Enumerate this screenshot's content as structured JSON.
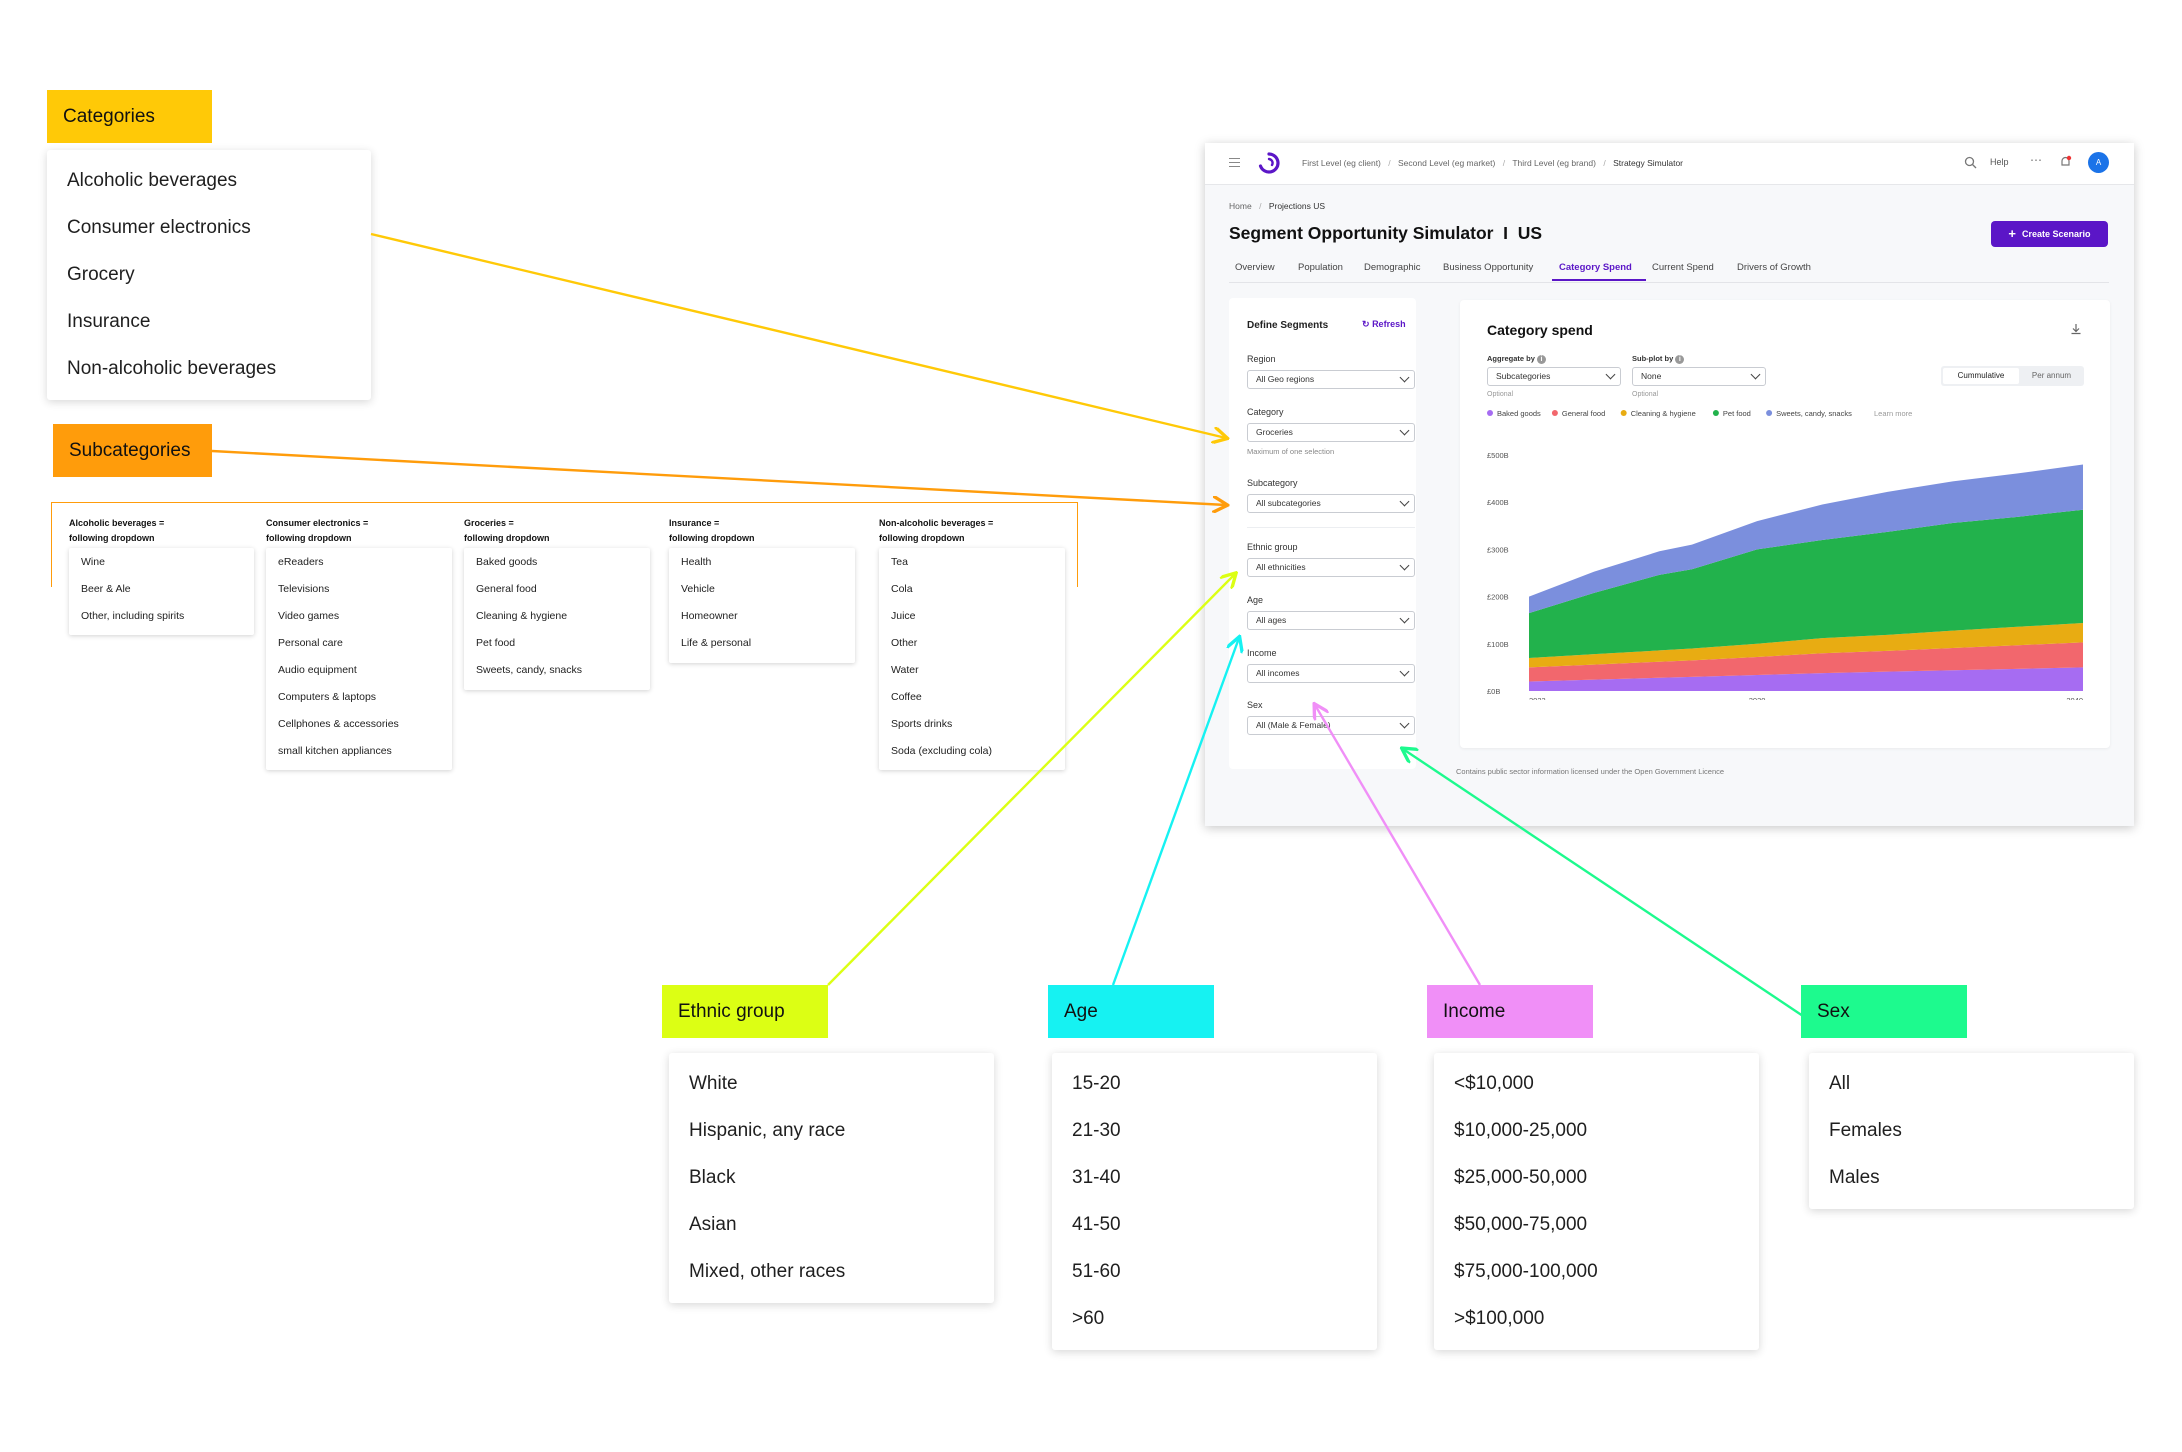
{
  "categories": {
    "tag": "Categories",
    "items": [
      "Alcoholic beverages",
      "Consumer electronics",
      "Grocery",
      "Insurance",
      "Non-alcoholic beverages"
    ]
  },
  "subcategories": {
    "tag": "Subcategories",
    "columns": [
      {
        "head1": "Alcoholic beverages =",
        "head2": "following dropdown",
        "items": [
          "Wine",
          "Beer & Ale",
          "Other, including spirits"
        ]
      },
      {
        "head1": "Consumer electronics =",
        "head2": "following dropdown",
        "items": [
          "eReaders",
          "Televisions",
          "Video games",
          "Personal care",
          "Audio equipment",
          "Computers & laptops",
          "Cellphones & accessories",
          "small kitchen appliances"
        ]
      },
      {
        "head1": "Groceries =",
        "head2": "following dropdown",
        "items": [
          "Baked goods",
          "General food",
          "Cleaning & hygiene",
          "Pet food",
          "Sweets, candy, snacks"
        ]
      },
      {
        "head1": "Insurance =",
        "head2": "following dropdown",
        "items": [
          "Health",
          "Vehicle",
          "Homeowner",
          "Life & personal"
        ]
      },
      {
        "head1": "Non-alcoholic beverages =",
        "head2": "following dropdown",
        "items": [
          "Tea",
          "Cola",
          "Juice",
          "Other",
          "Water",
          "Coffee",
          "Sports drinks",
          "Soda (excluding cola)"
        ]
      }
    ]
  },
  "ethnic": {
    "tag": "Ethnic group",
    "items": [
      "White",
      "Hispanic, any race",
      "Black",
      "Asian",
      "Mixed, other races"
    ]
  },
  "age": {
    "tag": "Age",
    "items": [
      "15-20",
      "21-30",
      "31-40",
      "41-50",
      "51-60",
      ">60"
    ]
  },
  "income": {
    "tag": "Income",
    "items": [
      "<$10,000",
      "$10,000-25,000",
      "$25,000-50,000",
      "$50,000-75,000",
      "$75,000-100,000",
      ">$100,000"
    ]
  },
  "sex": {
    "tag": "Sex",
    "items": [
      "All",
      "Females",
      "Males"
    ]
  },
  "colors": {
    "categories": "#ffc907",
    "subcategories": "#ff9c0b",
    "ethnic": "#dcff14",
    "age": "#16f2f2",
    "income": "#f08ff7",
    "sex": "#1dfa8e",
    "brand": "#5b16c7"
  },
  "app": {
    "breadcrumb_top": [
      "First Level (eg client)",
      "Second Level (eg market)",
      "Third Level (eg brand)",
      "Strategy Simulator"
    ],
    "help": "Help",
    "avatar": "A",
    "breadcrumb": [
      "Home",
      "Projections US"
    ],
    "title": "Segment Opportunity Simulator  I  US",
    "create_button": "Create Scenario",
    "tabs": [
      "Overview",
      "Population",
      "Demographic",
      "Business Opportunity",
      "Category Spend",
      "Current Spend",
      "Drivers of Growth"
    ],
    "active_tab": "Category Spend",
    "left": {
      "title": "Define Segments",
      "refresh": "Refresh",
      "region_label": "Region",
      "region_value": "All Geo regions",
      "category_label": "Category",
      "category_value": "Groceries",
      "category_hint": "Maximum of one selection",
      "subcategory_label": "Subcategory",
      "subcategory_value": "All subcategories",
      "ethnic_label": "Ethnic group",
      "ethnic_value": "All ethnicities",
      "age_label": "Age",
      "age_value": "All ages",
      "income_label": "Income",
      "income_value": "All incomes",
      "sex_label": "Sex",
      "sex_value": "All (Male & Female)"
    },
    "panel": {
      "title": "Category spend",
      "aggregate_label": "Aggregate by",
      "aggregate_value": "Subcategories",
      "aggregate_hint": "Optional",
      "subplot_label": "Sub-plot by",
      "subplot_value": "None",
      "subplot_hint": "Optional",
      "toggle": [
        "Cummulative",
        "Per annum"
      ],
      "learn_more": "Learn more"
    },
    "footer_note": "Contains public sector information licensed under the Open Government Licence"
  },
  "chart_data": {
    "type": "area",
    "stacked": true,
    "x": [
      2023,
      2025,
      2027,
      2028,
      2030,
      2032,
      2034,
      2036,
      2038,
      2040
    ],
    "x_ticks": [
      "2023",
      "2030",
      "2040"
    ],
    "y_ticks": [
      "£0B",
      "£100B",
      "£200B",
      "£300B",
      "£400B",
      "£500B"
    ],
    "ylim": [
      0,
      500
    ],
    "legend": "top-left",
    "series": [
      {
        "name": "Baked goods",
        "color": "#a66cf2",
        "values": [
          20,
          24,
          28,
          30,
          34,
          38,
          41,
          44,
          47,
          50
        ]
      },
      {
        "name": "General food",
        "color": "#f2676d",
        "values": [
          30,
          32,
          34,
          35,
          38,
          42,
          44,
          47,
          50,
          53
        ]
      },
      {
        "name": "Cleaning & hygiene",
        "color": "#e8ac12",
        "values": [
          20,
          22,
          24,
          25,
          28,
          32,
          34,
          37,
          39,
          41
        ]
      },
      {
        "name": "Pet food",
        "color": "#22b24c",
        "values": [
          95,
          130,
          160,
          168,
          200,
          208,
          218,
          228,
          233,
          240
        ]
      },
      {
        "name": "Sweets, candy, snacks",
        "color": "#7b8fdd",
        "values": [
          35,
          45,
          50,
          52,
          60,
          75,
          85,
          88,
          92,
          96
        ]
      }
    ]
  }
}
